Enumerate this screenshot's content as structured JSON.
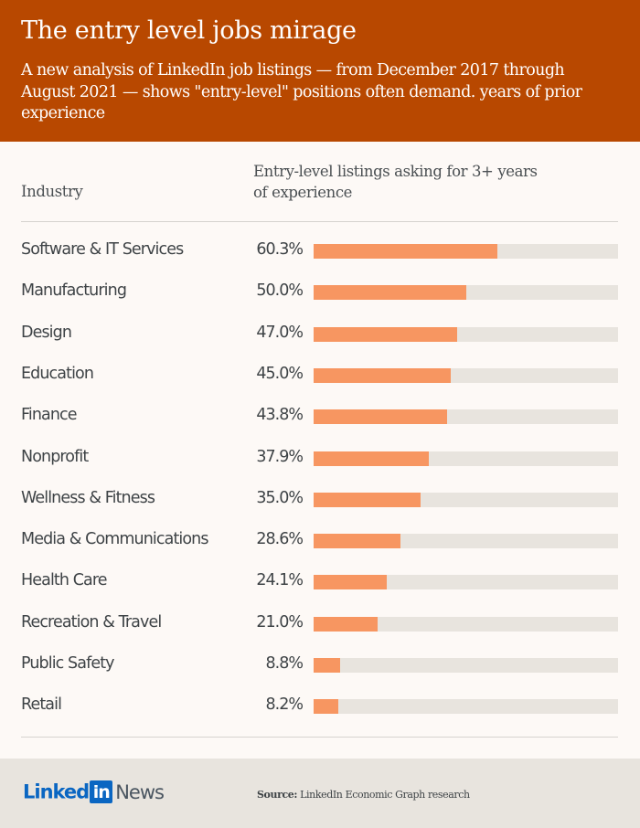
{
  "header": {
    "title": "The entry level jobs mirage",
    "subtitle": "A new analysis of LinkedIn job listings — from December 2017 through August 2021 — shows \"entry-level\" positions often demand. years of prior experience"
  },
  "colors": {
    "header_bg": "#b84800",
    "bar_fill": "#f79661",
    "bar_track": "#e8e4de",
    "page_bg": "#fdf9f6",
    "footer_bg": "#e8e4de",
    "linkedin_blue": "#0a66c2"
  },
  "table": {
    "col_industry": "Industry",
    "col_metric": "Entry-level listings asking for 3+ years of experience"
  },
  "chart_data": {
    "type": "bar",
    "orientation": "horizontal",
    "title": "The entry level jobs mirage",
    "subtitle": "A new analysis of LinkedIn job listings — from December 2017 through August 2021 — shows \"entry-level\" positions often demand. years of prior experience",
    "xlabel": "Entry-level listings asking for 3+ years of experience",
    "ylabel": "Industry",
    "xlim": [
      0,
      100
    ],
    "unit": "%",
    "grid": false,
    "categories": [
      "Software & IT Services",
      "Manufacturing",
      "Design",
      "Education",
      "Finance",
      "Nonprofit",
      "Wellness & Fitness",
      "Media & Communications",
      "Health Care",
      "Recreation & Travel",
      "Public Safety",
      "Retail"
    ],
    "values": [
      60.3,
      50.0,
      47.0,
      45.0,
      43.8,
      37.9,
      35.0,
      28.6,
      24.1,
      21.0,
      8.8,
      8.2
    ],
    "labels": [
      "60.3%",
      "50.0%",
      "47.0%",
      "45.0%",
      "43.8%",
      "37.9%",
      "35.0%",
      "28.6%",
      "24.1%",
      "21.0%",
      "8.8%",
      "8.2%"
    ]
  },
  "footer": {
    "logo_linked": "Linked",
    "logo_in": "in",
    "logo_news": "News",
    "source_label": "Source:",
    "source_text": "LinkedIn Economic Graph research"
  }
}
